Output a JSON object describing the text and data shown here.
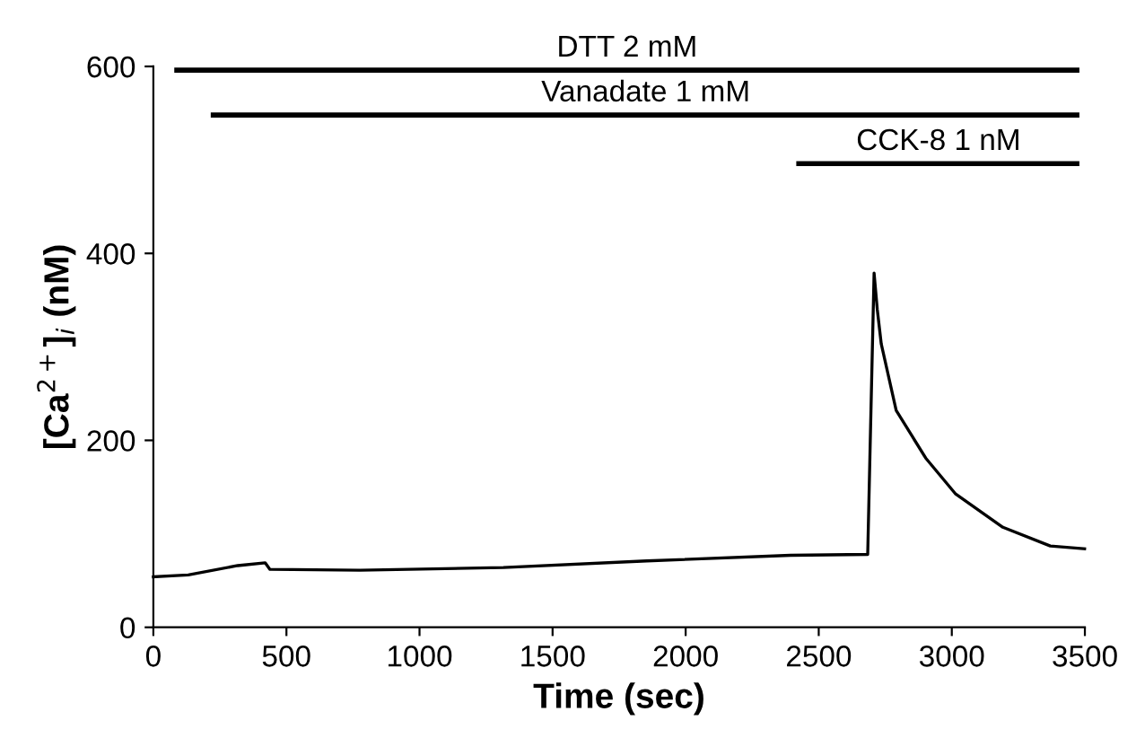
{
  "chart_data": {
    "type": "line",
    "xlabel": "Time (sec)",
    "ylabel": "[Ca$^{2+}$]$_{i}$ (nM)",
    "xlim": [
      0,
      3500
    ],
    "ylim": [
      0,
      600
    ],
    "xticks": [
      0,
      500,
      1000,
      1500,
      2000,
      2500,
      3000,
      3500
    ],
    "yticks": [
      0,
      200,
      400,
      600
    ],
    "grid": false,
    "series": [
      {
        "color": "#000000",
        "x": [
          0,
          131,
          317,
          420,
          438,
          776,
          1315,
          1854,
          2394,
          2684,
          2708,
          2720,
          2735,
          2791,
          2902,
          3013,
          3192,
          3370,
          3499
        ],
        "values": [
          54,
          56,
          66,
          69,
          62,
          61,
          64,
          71,
          77,
          78,
          379,
          340,
          303,
          232,
          181,
          143,
          107,
          87,
          84
        ]
      },
      {
        "color": "#000000",
        "x": [
          88,
          3470
        ],
        "values": [
          596,
          596
        ]
      },
      {
        "color": "#000000",
        "x": [
          225,
          3470
        ],
        "values": [
          548,
          548
        ]
      },
      {
        "color": "#000000",
        "x": [
          2425,
          3470
        ],
        "values": [
          496,
          496
        ]
      }
    ],
    "annotations": [
      {
        "text": "DTT 2 mM",
        "x": 1780,
        "y": 596
      },
      {
        "text": "Vanadate 1 mM",
        "x": 1850,
        "y": 548
      },
      {
        "text": "CCK-8 1 nM",
        "x": 2950,
        "y": 496
      }
    ]
  }
}
